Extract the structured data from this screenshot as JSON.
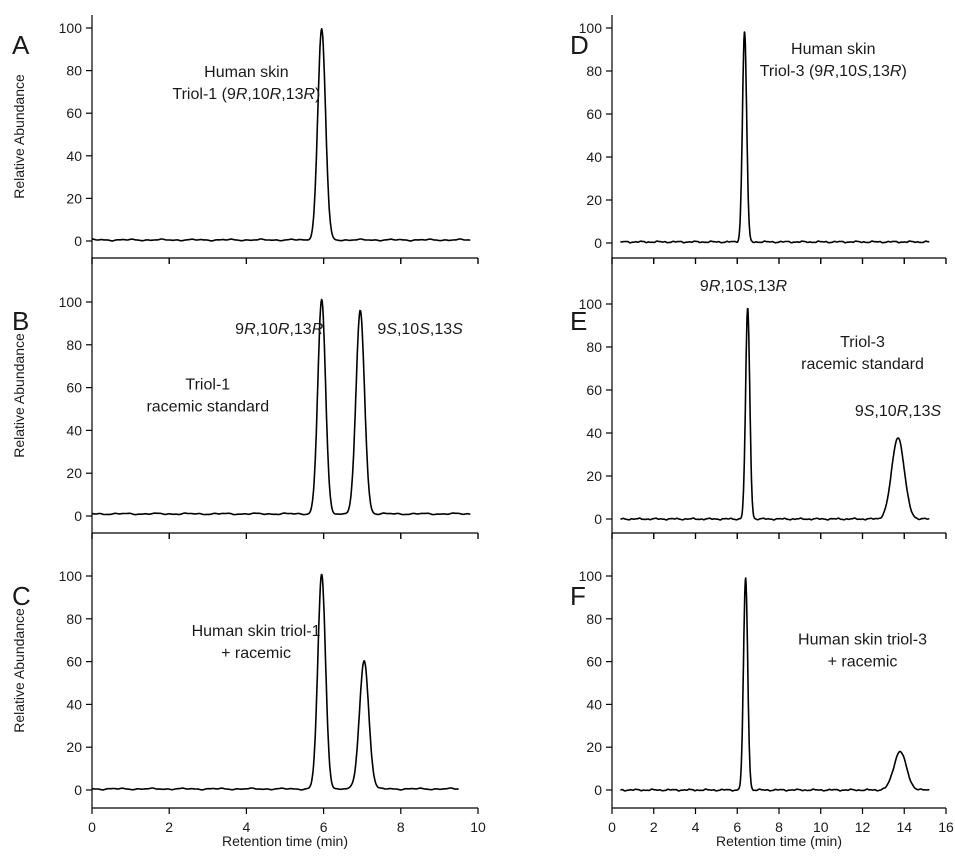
{
  "chart_data": [
    {
      "id": "A",
      "letter": "A",
      "type": "line",
      "ylabel": "Relative Abundance",
      "xlabel": "",
      "xlim": [
        0,
        10
      ],
      "ylim": [
        -5,
        105
      ],
      "yticks": [
        "0",
        "20",
        "40",
        "60",
        "80",
        "100"
      ],
      "baseline": 0.5,
      "trace_start": 0,
      "trace_end": 9.8,
      "peaks": [
        {
          "rt": 5.95,
          "height": 99,
          "width": 0.1
        }
      ],
      "annotations": [
        {
          "x": 4.0,
          "y": 77,
          "lines": [
            [
              {
                "t": "Human skin"
              }
            ],
            [
              {
                "t": "Triol-1 (9"
              },
              {
                "t": "R",
                "i": true
              },
              {
                "t": ",10"
              },
              {
                "t": "R",
                "i": true
              },
              {
                "t": ",13"
              },
              {
                "t": "R",
                "i": true
              },
              {
                "t": ")"
              }
            ]
          ]
        }
      ]
    },
    {
      "id": "B",
      "letter": "B",
      "type": "line",
      "ylabel": "Relative Abundance",
      "xlabel": "",
      "xlim": [
        0,
        10
      ],
      "ylim": [
        -5,
        105
      ],
      "yticks": [
        "0",
        "20",
        "40",
        "60",
        "80",
        "100"
      ],
      "baseline": 1,
      "trace_start": 0,
      "trace_end": 9.8,
      "peaks": [
        {
          "rt": 5.95,
          "height": 100,
          "width": 0.1
        },
        {
          "rt": 6.95,
          "height": 95,
          "width": 0.11
        }
      ],
      "annotations": [
        {
          "x": 4.85,
          "y": 85,
          "lines": [
            [
              {
                "t": "9"
              },
              {
                "t": "R",
                "i": true
              },
              {
                "t": ",10"
              },
              {
                "t": "R",
                "i": true
              },
              {
                "t": ",13"
              },
              {
                "t": "R",
                "i": true
              }
            ]
          ]
        },
        {
          "x": 8.5,
          "y": 85,
          "lines": [
            [
              {
                "t": "9"
              },
              {
                "t": "S",
                "i": true
              },
              {
                "t": ",10"
              },
              {
                "t": "S",
                "i": true
              },
              {
                "t": ",13"
              },
              {
                "t": "S",
                "i": true
              }
            ]
          ]
        },
        {
          "x": 3.0,
          "y": 59,
          "lines": [
            [
              {
                "t": "Triol-1"
              }
            ],
            [
              {
                "t": "racemic standard"
              }
            ]
          ]
        }
      ]
    },
    {
      "id": "C",
      "letter": "C",
      "type": "line",
      "ylabel": "Relative Abundance",
      "xlabel": "Retention time (min)",
      "xlim": [
        0,
        10
      ],
      "ylim": [
        -5,
        105
      ],
      "xticks": [
        "0",
        "2",
        "4",
        "6",
        "8",
        "10"
      ],
      "yticks": [
        "0",
        "20",
        "40",
        "60",
        "80",
        "100"
      ],
      "baseline": 0.5,
      "trace_start": 0,
      "trace_end": 9.5,
      "peaks": [
        {
          "rt": 5.95,
          "height": 100,
          "width": 0.1
        },
        {
          "rt": 7.05,
          "height": 60,
          "width": 0.12
        }
      ],
      "annotations": [
        {
          "x": 4.25,
          "y": 72,
          "lines": [
            [
              {
                "t": "Human skin triol-1"
              }
            ],
            [
              {
                "t": "+ racemic"
              }
            ]
          ]
        }
      ]
    },
    {
      "id": "D",
      "letter": "D",
      "type": "line",
      "ylabel": "",
      "xlabel": "",
      "xlim": [
        0,
        16
      ],
      "ylim": [
        -5,
        105
      ],
      "yticks": [
        "0",
        "20",
        "40",
        "60",
        "80",
        "100"
      ],
      "baseline": 0.5,
      "trace_start": 0.4,
      "trace_end": 15.2,
      "peaks": [
        {
          "rt": 6.35,
          "height": 98,
          "width": 0.1
        }
      ],
      "annotations": [
        {
          "x": 10.6,
          "y": 88,
          "lines": [
            [
              {
                "t": "Human skin"
              }
            ],
            [
              {
                "t": "Triol-3 (9"
              },
              {
                "t": "R",
                "i": true
              },
              {
                "t": ",10"
              },
              {
                "t": "S",
                "i": true
              },
              {
                "t": ",13"
              },
              {
                "t": "R",
                "i": true
              },
              {
                "t": ")"
              }
            ]
          ]
        }
      ]
    },
    {
      "id": "E",
      "letter": "E",
      "type": "line",
      "ylabel": "",
      "xlabel": "",
      "xlim": [
        0,
        16
      ],
      "ylim": [
        -5,
        105
      ],
      "yticks": [
        "0",
        "20",
        "40",
        "60",
        "80",
        "100"
      ],
      "baseline": 0,
      "trace_start": 0.4,
      "trace_end": 15.2,
      "peaks": [
        {
          "rt": 6.5,
          "height": 98,
          "width": 0.1
        },
        {
          "rt": 13.7,
          "height": 38,
          "width": 0.3
        }
      ],
      "annotations": [
        {
          "x": 6.3,
          "y": 106,
          "lines": [
            [
              {
                "t": "9"
              },
              {
                "t": "R",
                "i": true
              },
              {
                "t": ",10"
              },
              {
                "t": "S",
                "i": true
              },
              {
                "t": ",13"
              },
              {
                "t": "R",
                "i": true
              }
            ]
          ]
        },
        {
          "x": 12.0,
          "y": 80,
          "lines": [
            [
              {
                "t": "Triol-3"
              }
            ],
            [
              {
                "t": "racemic standard"
              }
            ]
          ]
        },
        {
          "x": 13.7,
          "y": 48,
          "lines": [
            [
              {
                "t": "9"
              },
              {
                "t": "S",
                "i": true
              },
              {
                "t": ",10"
              },
              {
                "t": "R",
                "i": true
              },
              {
                "t": ",13"
              },
              {
                "t": "S",
                "i": true
              }
            ]
          ]
        }
      ]
    },
    {
      "id": "F",
      "letter": "F",
      "type": "line",
      "ylabel": "",
      "xlabel": "Retention time (min)",
      "xlim": [
        0,
        16
      ],
      "ylim": [
        -5,
        105
      ],
      "xticks": [
        "0",
        "2",
        "4",
        "6",
        "8",
        "10",
        "12",
        "14",
        "16"
      ],
      "yticks": [
        "0",
        "20",
        "40",
        "60",
        "80",
        "100"
      ],
      "baseline": 0,
      "trace_start": 0.4,
      "trace_end": 15.2,
      "peaks": [
        {
          "rt": 6.4,
          "height": 99,
          "width": 0.1
        },
        {
          "rt": 13.8,
          "height": 18,
          "width": 0.3
        }
      ],
      "annotations": [
        {
          "x": 12.0,
          "y": 68,
          "lines": [
            [
              {
                "t": "Human skin triol-3"
              }
            ],
            [
              {
                "t": "+ racemic"
              }
            ]
          ]
        }
      ]
    }
  ]
}
